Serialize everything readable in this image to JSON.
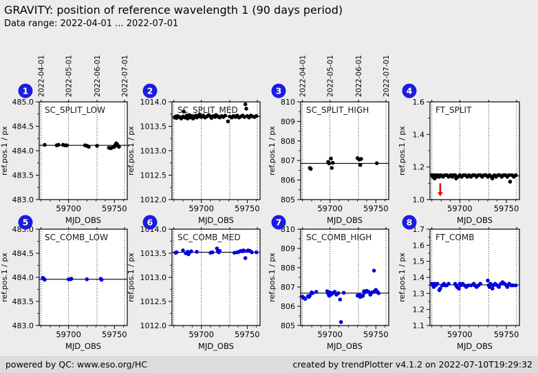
{
  "header": {
    "title": "GRAVITY: position of reference wavelength 1 (90 days period)",
    "subtitle": "Data range: 2022-04-01 ... 2022-07-01"
  },
  "footer": {
    "left": "powered by QC: www.eso.org/HC",
    "right": "created by trendPlotter v4.1.2 on 2022-07-10T19:29:32"
  },
  "colors": {
    "page_bg": "#ececec",
    "footer_bg": "#dcdcdc",
    "plot_bg": "#ffffff",
    "badge": "#1c1ce0",
    "badge_text": "#ffffff",
    "top_row_points": "#000000",
    "bottom_row_points": "#0000dd",
    "ref_line": "#000000",
    "arrow": "#ff0000"
  },
  "axis": {
    "xlabel": "MJD_OBS",
    "ylabel": "ref.pos.1 / px",
    "xlim": [
      59668,
      59764
    ],
    "x_major_ticks": [
      59700,
      59750
    ],
    "x_major_labels": [
      "59700",
      "59750"
    ],
    "x_minor_ticks": [
      59670,
      59680,
      59690,
      59710,
      59720,
      59730,
      59740,
      59760
    ],
    "month_gridlines": [
      {
        "mjd": 59670,
        "label": "2022-04-01"
      },
      {
        "mjd": 59700,
        "label": "2022-05-01"
      },
      {
        "mjd": 59731,
        "label": "2022-06-01"
      },
      {
        "mjd": 59761,
        "label": "2022-07-01"
      }
    ]
  },
  "chart_data": [
    {
      "type": "scatter",
      "badge": "1",
      "title": "SC_SPLIT_LOW",
      "ylim": [
        483.0,
        485.0
      ],
      "ytick_vals": [
        485.0,
        484.5,
        484.0,
        483.5,
        483.0
      ],
      "ytick_labels": [
        "485.0",
        "484.5",
        "484.0",
        "483.5",
        "483.0"
      ],
      "ref_line": 484.11,
      "show_top_dates": true,
      "marker_color": "#000000",
      "points": [
        [
          59674,
          484.12
        ],
        [
          59687,
          484.11
        ],
        [
          59689,
          484.12
        ],
        [
          59694,
          484.12
        ],
        [
          59696,
          484.11
        ],
        [
          59698,
          484.11
        ],
        [
          59718,
          484.11
        ],
        [
          59720,
          484.1
        ],
        [
          59722,
          484.08
        ],
        [
          59731,
          484.1
        ],
        [
          59744,
          484.06
        ],
        [
          59746,
          484.05
        ],
        [
          59748,
          484.07
        ],
        [
          59750,
          484.08
        ],
        [
          59751,
          484.12
        ],
        [
          59752,
          484.15
        ],
        [
          59753,
          484.13
        ],
        [
          59754,
          484.1
        ],
        [
          59755,
          484.08
        ]
      ]
    },
    {
      "type": "scatter",
      "badge": "2",
      "title": "SC_SPLIT_MED",
      "ylim": [
        1012.0,
        1014.0
      ],
      "ytick_vals": [
        1014.0,
        1013.5,
        1013.0,
        1012.5,
        1012.0
      ],
      "ytick_labels": [
        "1014.0",
        "1013.5",
        "1013.0",
        "1012.5",
        "1012.0"
      ],
      "ref_line": 1013.7,
      "show_top_dates": false,
      "marker_color": "#000000",
      "points": [
        [
          59671,
          1013.68
        ],
        [
          59672,
          1013.7
        ],
        [
          59673,
          1013.67
        ],
        [
          59674,
          1013.71
        ],
        [
          59676,
          1013.69
        ],
        [
          59678,
          1013.66
        ],
        [
          59680,
          1013.7
        ],
        [
          59681,
          1013.8
        ],
        [
          59682,
          1013.68
        ],
        [
          59684,
          1013.72
        ],
        [
          59685,
          1013.66
        ],
        [
          59686,
          1013.7
        ],
        [
          59687,
          1013.73
        ],
        [
          59688,
          1013.68
        ],
        [
          59690,
          1013.71
        ],
        [
          59691,
          1013.66
        ],
        [
          59692,
          1013.69
        ],
        [
          59694,
          1013.72
        ],
        [
          59695,
          1013.68
        ],
        [
          59697,
          1013.7
        ],
        [
          59698,
          1013.74
        ],
        [
          59700,
          1013.69
        ],
        [
          59702,
          1013.72
        ],
        [
          59704,
          1013.68
        ],
        [
          59706,
          1013.7
        ],
        [
          59708,
          1013.73
        ],
        [
          59710,
          1013.7
        ],
        [
          59711,
          1013.67
        ],
        [
          59713,
          1013.71
        ],
        [
          59715,
          1013.69
        ],
        [
          59716,
          1013.73
        ],
        [
          59718,
          1013.7
        ],
        [
          59720,
          1013.68
        ],
        [
          59722,
          1013.71
        ],
        [
          59724,
          1013.69
        ],
        [
          59726,
          1013.72
        ],
        [
          59729,
          1013.6
        ],
        [
          59731,
          1013.7
        ],
        [
          59733,
          1013.68
        ],
        [
          59735,
          1013.71
        ],
        [
          59737,
          1013.69
        ],
        [
          59739,
          1013.72
        ],
        [
          59741,
          1013.68
        ],
        [
          59743,
          1013.7
        ],
        [
          59745,
          1013.72
        ],
        [
          59747,
          1013.69
        ],
        [
          59748,
          1013.95
        ],
        [
          59749,
          1013.86
        ],
        [
          59750,
          1013.71
        ],
        [
          59752,
          1013.68
        ],
        [
          59754,
          1013.72
        ],
        [
          59756,
          1013.7
        ],
        [
          59758,
          1013.69
        ],
        [
          59760,
          1013.71
        ]
      ]
    },
    {
      "type": "scatter",
      "badge": "3",
      "title": "SC_SPLIT_HIGH",
      "ylim": [
        805,
        810
      ],
      "ytick_vals": [
        810,
        809,
        808,
        807,
        806,
        805
      ],
      "ytick_labels": [
        "810",
        "809",
        "808",
        "807",
        "806",
        "805"
      ],
      "ref_line": 806.85,
      "show_top_dates": true,
      "marker_color": "#000000",
      "points": [
        [
          59678,
          806.62
        ],
        [
          59679,
          806.57
        ],
        [
          59698,
          806.93
        ],
        [
          59699,
          806.85
        ],
        [
          59701,
          807.1
        ],
        [
          59702,
          806.62
        ],
        [
          59703,
          806.88
        ],
        [
          59730,
          807.12
        ],
        [
          59732,
          807.05
        ],
        [
          59733,
          806.77
        ],
        [
          59734,
          807.08
        ],
        [
          59751,
          806.86
        ]
      ]
    },
    {
      "type": "scatter",
      "badge": "4",
      "title": "FT_SPLIT",
      "ylim": [
        1.0,
        1.6
      ],
      "ytick_vals": [
        1.6,
        1.4,
        1.2,
        1.0
      ],
      "ytick_labels": [
        "1.6",
        "1.4",
        "1.2",
        "1.0"
      ],
      "ref_line": 1.145,
      "show_top_dates": false,
      "marker_color": "#000000",
      "arrow": {
        "x": 59679,
        "from": 1.1,
        "to": 1.02
      },
      "points": [
        [
          59670,
          1.15
        ],
        [
          59671,
          1.14
        ],
        [
          59672,
          1.15
        ],
        [
          59673,
          1.13
        ],
        [
          59674,
          1.15
        ],
        [
          59675,
          1.14
        ],
        [
          59677,
          1.15
        ],
        [
          59678,
          1.14
        ],
        [
          59680,
          1.15
        ],
        [
          59682,
          1.14
        ],
        [
          59684,
          1.15
        ],
        [
          59686,
          1.15
        ],
        [
          59688,
          1.14
        ],
        [
          59690,
          1.15
        ],
        [
          59692,
          1.14
        ],
        [
          59693,
          1.15
        ],
        [
          59695,
          1.15
        ],
        [
          59696,
          1.13
        ],
        [
          59698,
          1.14
        ],
        [
          59700,
          1.15
        ],
        [
          59702,
          1.14
        ],
        [
          59704,
          1.15
        ],
        [
          59706,
          1.15
        ],
        [
          59708,
          1.14
        ],
        [
          59710,
          1.15
        ],
        [
          59712,
          1.14
        ],
        [
          59714,
          1.15
        ],
        [
          59716,
          1.15
        ],
        [
          59718,
          1.14
        ],
        [
          59720,
          1.15
        ],
        [
          59722,
          1.15
        ],
        [
          59724,
          1.14
        ],
        [
          59726,
          1.15
        ],
        [
          59728,
          1.15
        ],
        [
          59730,
          1.14
        ],
        [
          59732,
          1.15
        ],
        [
          59734,
          1.14
        ],
        [
          59735,
          1.13
        ],
        [
          59737,
          1.15
        ],
        [
          59739,
          1.14
        ],
        [
          59741,
          1.15
        ],
        [
          59743,
          1.15
        ],
        [
          59745,
          1.14
        ],
        [
          59747,
          1.15
        ],
        [
          59749,
          1.15
        ],
        [
          59751,
          1.14
        ],
        [
          59753,
          1.15
        ],
        [
          59754,
          1.11
        ],
        [
          59756,
          1.15
        ],
        [
          59758,
          1.14
        ],
        [
          59760,
          1.15
        ]
      ]
    },
    {
      "type": "scatter",
      "badge": "5",
      "title": "SC_COMB_LOW",
      "ylim": [
        483.0,
        485.0
      ],
      "ytick_vals": [
        485.0,
        484.5,
        484.0,
        483.5,
        483.0
      ],
      "ytick_labels": [
        "485.0",
        "484.5",
        "484.0",
        "483.5",
        "483.0"
      ],
      "ref_line": 483.96,
      "show_top_dates": false,
      "marker_color": "#0000dd",
      "points": [
        [
          59672,
          483.99
        ],
        [
          59673,
          483.97
        ],
        [
          59674,
          483.95
        ],
        [
          59700,
          483.96
        ],
        [
          59702,
          483.96
        ],
        [
          59703,
          483.97
        ],
        [
          59720,
          483.96
        ],
        [
          59735,
          483.97
        ],
        [
          59736,
          483.95
        ]
      ]
    },
    {
      "type": "scatter",
      "badge": "6",
      "title": "SC_COMB_MED",
      "ylim": [
        1012.0,
        1014.0
      ],
      "ytick_vals": [
        1014.0,
        1013.5,
        1013.0,
        1012.5,
        1012.0
      ],
      "ytick_labels": [
        "1014.0",
        "1013.5",
        "1013.0",
        "1012.5",
        "1012.0"
      ],
      "ref_line": 1013.52,
      "show_top_dates": false,
      "marker_color": "#0000dd",
      "points": [
        [
          59672,
          1013.51
        ],
        [
          59673,
          1013.52
        ],
        [
          59680,
          1013.56
        ],
        [
          59683,
          1013.5
        ],
        [
          59685,
          1013.53
        ],
        [
          59686,
          1013.48
        ],
        [
          59687,
          1013.52
        ],
        [
          59689,
          1013.54
        ],
        [
          59695,
          1013.53
        ],
        [
          59710,
          1013.51
        ],
        [
          59712,
          1013.52
        ],
        [
          59717,
          1013.6
        ],
        [
          59718,
          1013.54
        ],
        [
          59719,
          1013.52
        ],
        [
          59720,
          1013.55
        ],
        [
          59736,
          1013.51
        ],
        [
          59739,
          1013.52
        ],
        [
          59741,
          1013.53
        ],
        [
          59743,
          1013.55
        ],
        [
          59745,
          1013.54
        ],
        [
          59746,
          1013.56
        ],
        [
          59748,
          1013.4
        ],
        [
          59750,
          1013.55
        ],
        [
          59751,
          1013.56
        ],
        [
          59753,
          1013.55
        ],
        [
          59755,
          1013.52
        ],
        [
          59760,
          1013.52
        ]
      ]
    },
    {
      "type": "scatter",
      "badge": "7",
      "title": "SC_COMB_HIGH",
      "ylim": [
        805,
        810
      ],
      "ytick_vals": [
        810,
        809,
        808,
        807,
        806,
        805
      ],
      "ytick_labels": [
        "810",
        "809",
        "808",
        "807",
        "806",
        "805"
      ],
      "ref_line": 806.68,
      "show_top_dates": false,
      "marker_color": "#0000dd",
      "points": [
        [
          59670,
          806.5
        ],
        [
          59671,
          806.45
        ],
        [
          59672,
          806.42
        ],
        [
          59673,
          806.38
        ],
        [
          59676,
          806.52
        ],
        [
          59677,
          806.48
        ],
        [
          59678,
          806.55
        ],
        [
          59680,
          806.72
        ],
        [
          59681,
          806.68
        ],
        [
          59685,
          806.75
        ],
        [
          59697,
          806.78
        ],
        [
          59698,
          806.65
        ],
        [
          59699,
          806.55
        ],
        [
          59700,
          806.72
        ],
        [
          59701,
          806.6
        ],
        [
          59703,
          806.68
        ],
        [
          59705,
          806.75
        ],
        [
          59707,
          806.6
        ],
        [
          59709,
          806.68
        ],
        [
          59711,
          806.35
        ],
        [
          59712,
          805.18
        ],
        [
          59715,
          806.7
        ],
        [
          59730,
          806.55
        ],
        [
          59732,
          806.6
        ],
        [
          59733,
          806.48
        ],
        [
          59735,
          806.52
        ],
        [
          59736,
          806.55
        ],
        [
          59737,
          806.78
        ],
        [
          59738,
          806.72
        ],
        [
          59740,
          806.8
        ],
        [
          59742,
          806.75
        ],
        [
          59744,
          806.6
        ],
        [
          59746,
          806.72
        ],
        [
          59748,
          807.85
        ],
        [
          59749,
          806.8
        ],
        [
          59750,
          806.85
        ],
        [
          59751,
          806.78
        ],
        [
          59752,
          806.72
        ],
        [
          59753,
          806.68
        ]
      ]
    },
    {
      "type": "scatter",
      "badge": "8",
      "title": "FT_COMB",
      "ylim": [
        1.1,
        1.7
      ],
      "ytick_vals": [
        1.7,
        1.6,
        1.5,
        1.4,
        1.3,
        1.2,
        1.1
      ],
      "ytick_labels": [
        "1.7",
        "1.6",
        "1.5",
        "1.4",
        "1.3",
        "1.2",
        "1.1"
      ],
      "ref_line": 1.353,
      "show_top_dates": false,
      "marker_color": "#0000dd",
      "points": [
        [
          59670,
          1.36
        ],
        [
          59671,
          1.35
        ],
        [
          59672,
          1.34
        ],
        [
          59673,
          1.36
        ],
        [
          59674,
          1.35
        ],
        [
          59676,
          1.36
        ],
        [
          59678,
          1.32
        ],
        [
          59679,
          1.33
        ],
        [
          59681,
          1.35
        ],
        [
          59683,
          1.36
        ],
        [
          59684,
          1.35
        ],
        [
          59686,
          1.35
        ],
        [
          59688,
          1.36
        ],
        [
          59695,
          1.36
        ],
        [
          59696,
          1.35
        ],
        [
          59697,
          1.34
        ],
        [
          59699,
          1.33
        ],
        [
          59700,
          1.36
        ],
        [
          59701,
          1.35
        ],
        [
          59703,
          1.36
        ],
        [
          59705,
          1.35
        ],
        [
          59707,
          1.34
        ],
        [
          59709,
          1.35
        ],
        [
          59712,
          1.35
        ],
        [
          59715,
          1.36
        ],
        [
          59716,
          1.35
        ],
        [
          59718,
          1.34
        ],
        [
          59720,
          1.35
        ],
        [
          59722,
          1.36
        ],
        [
          59730,
          1.38
        ],
        [
          59731,
          1.35
        ],
        [
          59732,
          1.34
        ],
        [
          59733,
          1.36
        ],
        [
          59735,
          1.33
        ],
        [
          59736,
          1.35
        ],
        [
          59738,
          1.36
        ],
        [
          59740,
          1.35
        ],
        [
          59742,
          1.34
        ],
        [
          59744,
          1.36
        ],
        [
          59746,
          1.37
        ],
        [
          59748,
          1.36
        ],
        [
          59750,
          1.35
        ],
        [
          59751,
          1.34
        ],
        [
          59753,
          1.36
        ],
        [
          59755,
          1.35
        ],
        [
          59757,
          1.35
        ],
        [
          59760,
          1.35
        ]
      ]
    }
  ]
}
